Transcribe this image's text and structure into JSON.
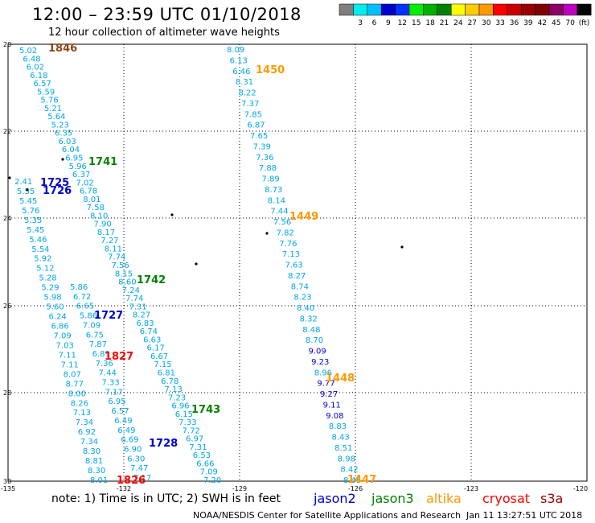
{
  "header": {
    "title": "12:00 – 23:59 UTC 01/10/2018",
    "subtitle": "12 hour collection of altimeter wave heights"
  },
  "colorbar": {
    "unit": "(ft)",
    "colors": [
      "#7f7f7f",
      "#00eeee",
      "#00bfff",
      "#0000cd",
      "#0033ff",
      "#00ee00",
      "#00b000",
      "#008000",
      "#ffff00",
      "#ffcc00",
      "#ff9900",
      "#ff0000",
      "#cc0000",
      "#990000",
      "#800000",
      "#8b0066",
      "#c000c0",
      "#000000"
    ],
    "labels": [
      "3",
      "6",
      "9",
      "12",
      "15",
      "18",
      "21",
      "24",
      "27",
      "30",
      "33",
      "36",
      "39",
      "42",
      "45",
      "70"
    ]
  },
  "axes": {
    "x_ticks": [
      "-135",
      "-132",
      "-129",
      "-126",
      "-123",
      "-120"
    ],
    "y_ticks": [
      "20",
      "22",
      "24",
      "26",
      "28",
      "30"
    ]
  },
  "times": [
    {
      "label": "1846",
      "color": "#8b4513"
    },
    {
      "label": "1450",
      "color": "#ff9900"
    },
    {
      "label": "1741",
      "color": "#008000"
    },
    {
      "label": "1725",
      "color": "#0000cd"
    },
    {
      "label": "1726",
      "color": "#0000cd"
    },
    {
      "label": "1449",
      "color": "#ff9900"
    },
    {
      "label": "1742",
      "color": "#008000"
    },
    {
      "label": "1727",
      "color": "#0000cd"
    },
    {
      "label": "1827",
      "color": "#ff0000"
    },
    {
      "label": "1448",
      "color": "#ff9900"
    },
    {
      "label": "1743",
      "color": "#008000"
    },
    {
      "label": "1728",
      "color": "#0000cd"
    },
    {
      "label": "1826",
      "color": "#ff0000"
    },
    {
      "label": "1447",
      "color": "#ff9900"
    }
  ],
  "tracks": {
    "track_a": [
      "5.02",
      "6.48",
      "6.02",
      "6.18",
      "6.57",
      "5.59",
      "5.76",
      "5.21",
      "5.64",
      "5.23",
      "6.35",
      "6.03",
      "6.04",
      "6.95",
      "5.96",
      "6.37",
      "7.02",
      "6.78",
      "8.01",
      "7.58",
      "8.10",
      "7.90",
      "8.17",
      "7.27",
      "8.11",
      "7.74",
      "7.56",
      "8.15",
      "8.60",
      "7.24",
      "7.74",
      "7.31",
      "8.27",
      "6.83",
      "6.74",
      "6.63",
      "6.17",
      "6.67",
      "7.15",
      "6.81",
      "6.78",
      "7.13",
      "7.23",
      "6.96",
      "6.15",
      "7.33",
      "7.72",
      "6.97",
      "7.31",
      "6.53",
      "6.66",
      "7.09",
      "7.20"
    ],
    "track_b": [
      "2.41",
      "5.55",
      "5.45",
      "5.76",
      "5.35",
      "5.45",
      "5.46",
      "5.54",
      "5.92",
      "5.12",
      "5.28",
      "5.29",
      "5.98",
      "5.60",
      "6.24",
      "6.86",
      "7.09",
      "7.03",
      "7.11",
      "7.11",
      "8.07",
      "8.77",
      "8.00",
      "8.26",
      "7.13",
      "7.34",
      "6.92",
      "7.34",
      "8.30",
      "8.81",
      "8.30",
      "8.01"
    ],
    "track_c": [
      "5.86",
      "6.72",
      "6.65",
      "5.86",
      "7.09",
      "6.75",
      "7.87",
      "6.89",
      "7.36",
      "7.44",
      "7.33",
      "7.17",
      "6.95",
      "6.57",
      "6.49",
      "6.49",
      "6.69",
      "6.90",
      "6.30",
      "7.47",
      "7.17"
    ],
    "track_d": [
      "8.09",
      "6.13",
      "6.46",
      "8.31",
      "8.22",
      "7.37",
      "7.85",
      "6.87",
      "7.65",
      "7.39",
      "7.36",
      "7.88",
      "7.89",
      "8.73",
      "8.14",
      "7.44",
      "7.56",
      "7.82",
      "7.76",
      "7.13",
      "7.63",
      "8.27",
      "8.74",
      "8.23",
      "8.40",
      "8.32",
      "8.48",
      "8.70",
      "9.09",
      "9.23",
      "8.96",
      "9.77",
      "9.27",
      "9.11",
      "9.08",
      "8.83",
      "8.43",
      "8.51",
      "8.98",
      "8.42",
      "8.45"
    ]
  },
  "footer": {
    "note": "note:  1) Time is in UTC;  2) SWH is in feet",
    "satellites": [
      {
        "name": "jason2",
        "color": "#0000cd"
      },
      {
        "name": "jason3",
        "color": "#008000"
      },
      {
        "name": "altika",
        "color": "#ff9900"
      },
      {
        "name": "cryosat",
        "color": "#ff0000"
      },
      {
        "name": "s3a",
        "color": "#990000"
      }
    ],
    "credit": "NOAA/NESDIS Center for Satellite Applications and Research",
    "timestamp": "Jan 11 13:27:51 UTC 2018"
  }
}
